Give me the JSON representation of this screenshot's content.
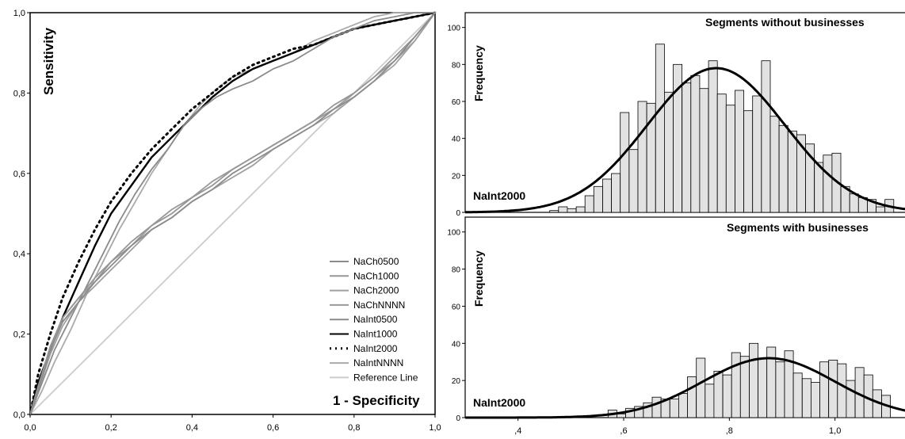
{
  "chart_data": [
    {
      "type": "line",
      "xlabel": "1 - Specificity",
      "ylabel": "Sensitivity",
      "xlim": [
        0,
        1
      ],
      "ylim": [
        0,
        1
      ],
      "xticks": [
        "0,0",
        "0,2",
        "0,4",
        "0,6",
        "0,8",
        "1,0"
      ],
      "yticks": [
        "0,0",
        "0,2",
        "0,4",
        "0,6",
        "0,8",
        "1,0"
      ],
      "legend_position": "bottom-right",
      "grid": false,
      "series": [
        {
          "name": "NaCh0500",
          "color": "#8c8c8c",
          "dash": "solid",
          "x": [
            0,
            0.02,
            0.05,
            0.08,
            0.12,
            0.16,
            0.2,
            0.25,
            0.3,
            0.35,
            0.4,
            0.45,
            0.5,
            0.55,
            0.6,
            0.65,
            0.7,
            0.75,
            0.8,
            0.85,
            0.9,
            0.95,
            1.0
          ],
          "y": [
            0,
            0.06,
            0.16,
            0.23,
            0.28,
            0.33,
            0.37,
            0.42,
            0.46,
            0.49,
            0.53,
            0.56,
            0.6,
            0.63,
            0.66,
            0.69,
            0.72,
            0.76,
            0.79,
            0.83,
            0.88,
            0.94,
            1.0
          ]
        },
        {
          "name": "NaCh1000",
          "color": "#969696",
          "dash": "solid",
          "x": [
            0,
            0.02,
            0.05,
            0.08,
            0.12,
            0.16,
            0.2,
            0.25,
            0.3,
            0.35,
            0.4,
            0.45,
            0.5,
            0.55,
            0.6,
            0.65,
            0.7,
            0.75,
            0.8,
            0.85,
            0.9,
            0.95,
            1.0
          ],
          "y": [
            0,
            0.07,
            0.17,
            0.24,
            0.29,
            0.34,
            0.38,
            0.43,
            0.47,
            0.5,
            0.54,
            0.57,
            0.61,
            0.64,
            0.67,
            0.7,
            0.73,
            0.77,
            0.8,
            0.84,
            0.89,
            0.94,
            1.0
          ]
        },
        {
          "name": "NaCh2000",
          "color": "#a0a0a0",
          "dash": "solid",
          "x": [
            0,
            0.02,
            0.05,
            0.08,
            0.12,
            0.16,
            0.2,
            0.25,
            0.3,
            0.35,
            0.4,
            0.45,
            0.5,
            0.55,
            0.6,
            0.65,
            0.7,
            0.75,
            0.8,
            0.85,
            0.9,
            0.95,
            1.0
          ],
          "y": [
            0,
            0.06,
            0.15,
            0.22,
            0.28,
            0.32,
            0.36,
            0.41,
            0.46,
            0.49,
            0.53,
            0.56,
            0.59,
            0.62,
            0.66,
            0.69,
            0.72,
            0.75,
            0.79,
            0.83,
            0.87,
            0.93,
            1.0
          ]
        },
        {
          "name": "NaChNNNN",
          "color": "#9a9a9a",
          "dash": "solid",
          "x": [
            0,
            0.02,
            0.05,
            0.08,
            0.12,
            0.16,
            0.2,
            0.25,
            0.3,
            0.35,
            0.4,
            0.45,
            0.5,
            0.55,
            0.6,
            0.65,
            0.7,
            0.75,
            0.8,
            0.85,
            0.9,
            0.95,
            1.0
          ],
          "y": [
            0,
            0.07,
            0.16,
            0.24,
            0.29,
            0.33,
            0.38,
            0.42,
            0.47,
            0.51,
            0.54,
            0.58,
            0.61,
            0.64,
            0.67,
            0.7,
            0.73,
            0.76,
            0.8,
            0.84,
            0.88,
            0.93,
            1.0
          ]
        },
        {
          "name": "NaInt0500",
          "color": "#8a8a8a",
          "dash": "solid",
          "x": [
            0,
            0.03,
            0.06,
            0.1,
            0.14,
            0.18,
            0.22,
            0.26,
            0.3,
            0.34,
            0.38,
            0.42,
            0.46,
            0.5,
            0.55,
            0.6,
            0.65,
            0.7,
            0.75,
            0.8,
            0.85,
            0.9,
            0.95,
            1.0
          ],
          "y": [
            0,
            0.08,
            0.16,
            0.24,
            0.32,
            0.4,
            0.48,
            0.55,
            0.61,
            0.66,
            0.72,
            0.76,
            0.79,
            0.81,
            0.83,
            0.86,
            0.88,
            0.91,
            0.94,
            0.96,
            0.98,
            0.99,
            1.0,
            1.0
          ]
        },
        {
          "name": "NaInt1000",
          "color": "#000000",
          "dash": "solid",
          "x": [
            0,
            0.02,
            0.05,
            0.08,
            0.12,
            0.16,
            0.2,
            0.25,
            0.3,
            0.35,
            0.4,
            0.45,
            0.5,
            0.55,
            0.6,
            0.65,
            0.7,
            0.75,
            0.8,
            0.85,
            0.9,
            0.95,
            1.0
          ],
          "y": [
            0,
            0.08,
            0.16,
            0.24,
            0.33,
            0.42,
            0.5,
            0.57,
            0.64,
            0.69,
            0.74,
            0.79,
            0.83,
            0.86,
            0.88,
            0.9,
            0.92,
            0.94,
            0.96,
            0.97,
            0.98,
            0.99,
            1.0
          ]
        },
        {
          "name": "NaInt2000",
          "color": "#000000",
          "dash": "dotted",
          "x": [
            0,
            0.02,
            0.05,
            0.08,
            0.12,
            0.16,
            0.2,
            0.25,
            0.3,
            0.35,
            0.4,
            0.45,
            0.5,
            0.55,
            0.6,
            0.65,
            0.7,
            0.75,
            0.8,
            0.85,
            0.9,
            0.95,
            1.0
          ],
          "y": [
            0,
            0.1,
            0.2,
            0.29,
            0.38,
            0.46,
            0.53,
            0.6,
            0.66,
            0.71,
            0.76,
            0.8,
            0.84,
            0.87,
            0.89,
            0.91,
            0.92,
            0.94,
            0.96,
            0.97,
            0.98,
            0.99,
            1.0
          ]
        },
        {
          "name": "NaIntNNNN",
          "color": "#aaaaaa",
          "dash": "solid",
          "x": [
            0,
            0.03,
            0.06,
            0.1,
            0.14,
            0.18,
            0.22,
            0.26,
            0.3,
            0.34,
            0.38,
            0.42,
            0.46,
            0.5,
            0.55,
            0.6,
            0.65,
            0.7,
            0.75,
            0.8,
            0.85,
            0.9,
            0.95,
            1.0
          ],
          "y": [
            0,
            0.06,
            0.13,
            0.21,
            0.3,
            0.38,
            0.46,
            0.53,
            0.6,
            0.66,
            0.72,
            0.77,
            0.81,
            0.84,
            0.86,
            0.88,
            0.9,
            0.93,
            0.95,
            0.97,
            0.99,
            1.0,
            1.0,
            1.0
          ]
        },
        {
          "name": "Reference Line",
          "color": "#cccccc",
          "dash": "solid",
          "x": [
            0,
            1
          ],
          "y": [
            0,
            1
          ]
        }
      ]
    },
    {
      "type": "bar",
      "title": "Segments without businesses",
      "ylabel": "Frequency",
      "annotation": "NaInt2000",
      "xlim": [
        0.3,
        1.14
      ],
      "ylim": [
        0,
        108
      ],
      "yticks": [
        0,
        20,
        40,
        60,
        80,
        100
      ],
      "bin_start": 0.46,
      "bin_width": 0.0167,
      "values": [
        1,
        3,
        2,
        3,
        9,
        14,
        18,
        21,
        54,
        34,
        60,
        59,
        91,
        65,
        80,
        70,
        74,
        67,
        82,
        64,
        58,
        66,
        55,
        63,
        82,
        52,
        47,
        44,
        42,
        37,
        27,
        31,
        32,
        14,
        10,
        8,
        7,
        3,
        7
      ],
      "normal_curve": {
        "mean": 0.775,
        "sd": 0.13,
        "peak": 78
      }
    },
    {
      "type": "bar",
      "title": "Segments with businesses",
      "ylabel": "Frequency",
      "annotation": "NaInt2000",
      "xlim": [
        0.3,
        1.14
      ],
      "ylim": [
        0,
        108
      ],
      "xticks": [
        ",4",
        ",6",
        ",8",
        "1,0"
      ],
      "xtick_values": [
        0.4,
        0.6,
        0.8,
        1.0
      ],
      "yticks": [
        0,
        20,
        40,
        60,
        80,
        100
      ],
      "bin_start": 0.5705,
      "bin_width": 0.0167,
      "values": [
        4,
        2,
        5,
        6,
        8,
        11,
        10,
        10,
        13,
        22,
        32,
        18,
        25,
        23,
        35,
        33,
        40,
        32,
        38,
        30,
        36,
        24,
        21,
        19,
        30,
        31,
        29,
        20,
        27,
        23,
        15,
        12
      ],
      "normal_curve": {
        "mean": 0.875,
        "sd": 0.125,
        "peak": 32
      }
    }
  ]
}
